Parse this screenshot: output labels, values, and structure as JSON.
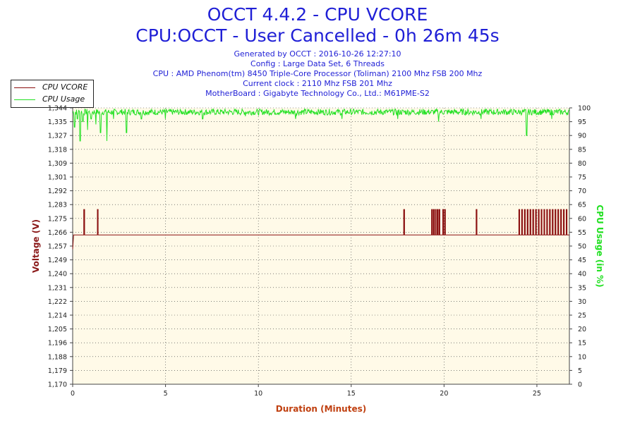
{
  "header": {
    "title": "OCCT 4.4.2 - CPU VCORE",
    "subtitle": "CPU:OCCT - User Cancelled - 0h 26m 45s",
    "info_lines": [
      "Generated by OCCT : 2016-10-26 12:27:10",
      "Config : Large Data Set, 6 Threads",
      "CPU : AMD Phenom(tm) 8450 Triple-Core Processor (Toliman) 2100 Mhz FSB 200 Mhz",
      "Current clock : 2110 Mhz FSB 201 Mhz",
      "MotherBoard : Gigabyte Technology Co., Ltd.: M61PME-S2"
    ]
  },
  "legend": {
    "items": [
      {
        "label": "CPU VCORE",
        "color": "#8b1010"
      },
      {
        "label": "CPU Usage",
        "color": "#22e022"
      }
    ]
  },
  "colors": {
    "vcore": "#8b1010",
    "usage": "#22e022",
    "plot_bg": "#fffae8",
    "title": "#1f1fd6",
    "xlabel": "#c04010",
    "ylabel_left": "#8b1a1a",
    "ylabel_right": "#22e022"
  },
  "chart_data": {
    "type": "line",
    "xlabel": "Duration (Minutes)",
    "ylabel_left": "Voltage (V)",
    "ylabel_right": "CPU Usage (in %)",
    "xlim": [
      0,
      26.75
    ],
    "x_ticks": [
      0,
      5,
      10,
      15,
      20,
      25
    ],
    "ylim_left": [
      1.17,
      1.344
    ],
    "y_ticks_left": [
      "1,170",
      "1,179",
      "1,188",
      "1,196",
      "1,205",
      "1,214",
      "1,222",
      "1,231",
      "1,240",
      "1,249",
      "1,257",
      "1,266",
      "1,275",
      "1,283",
      "1,292",
      "1,301",
      "1,309",
      "1,318",
      "1,327",
      "1,335",
      "1,344"
    ],
    "ylim_right": [
      0,
      100
    ],
    "y_ticks_right": [
      0,
      5,
      10,
      15,
      20,
      25,
      30,
      35,
      40,
      45,
      50,
      55,
      60,
      65,
      70,
      75,
      80,
      85,
      90,
      95,
      100
    ],
    "grid": "dotted",
    "legend_position": "top-left",
    "series": [
      {
        "name": "CPU VCORE",
        "axis": "left",
        "baseline": 1.264,
        "spike_high": 1.28,
        "spikes_at": [
          0.62,
          1.35,
          17.85,
          19.35,
          19.45,
          19.55,
          19.65,
          19.75,
          19.95,
          20.05,
          21.75,
          24.05,
          24.2,
          24.35,
          24.5,
          24.65,
          24.8,
          24.95,
          25.1,
          25.25,
          25.4,
          25.55,
          25.7,
          25.85,
          26.0,
          26.15,
          26.3,
          26.45,
          26.6
        ],
        "start_dip": {
          "x": 0.05,
          "y": 1.255
        }
      },
      {
        "name": "CPU Usage",
        "axis": "right",
        "typical": 98.5,
        "dips": [
          {
            "x": 0.1,
            "y": 93
          },
          {
            "x": 0.25,
            "y": 96
          },
          {
            "x": 0.4,
            "y": 88
          },
          {
            "x": 0.55,
            "y": 95
          },
          {
            "x": 0.8,
            "y": 92
          },
          {
            "x": 1.0,
            "y": 96
          },
          {
            "x": 1.25,
            "y": 94
          },
          {
            "x": 1.5,
            "y": 91
          },
          {
            "x": 1.85,
            "y": 88
          },
          {
            "x": 2.2,
            "y": 96
          },
          {
            "x": 2.9,
            "y": 91
          },
          {
            "x": 3.7,
            "y": 96
          },
          {
            "x": 5.0,
            "y": 96
          },
          {
            "x": 7.0,
            "y": 96
          },
          {
            "x": 9.3,
            "y": 97
          },
          {
            "x": 12.0,
            "y": 96
          },
          {
            "x": 14.5,
            "y": 96
          },
          {
            "x": 17.5,
            "y": 96
          },
          {
            "x": 19.7,
            "y": 95
          },
          {
            "x": 22.0,
            "y": 96
          },
          {
            "x": 24.45,
            "y": 90
          },
          {
            "x": 25.8,
            "y": 96
          }
        ]
      }
    ]
  }
}
